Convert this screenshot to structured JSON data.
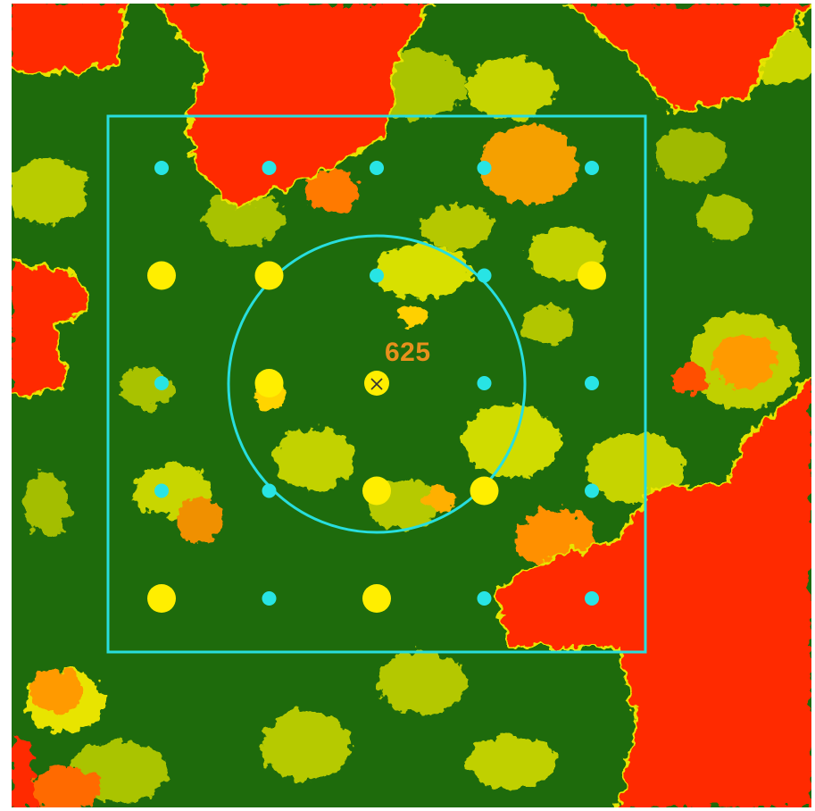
{
  "map": {
    "plot_id_label": "625",
    "center_marker_icon": "x-mark-icon",
    "colors": {
      "background": "#1e6b0c",
      "low_vegetation": "#c9d400",
      "mid_vegetation": "#f0e800",
      "high_stress": "#ff2a00",
      "transition": "#ff9000",
      "plot_outline": "#28dede",
      "sample_point_large": "#ffee00",
      "sample_point_small": "#28e4e4",
      "label": "#e8901c"
    },
    "grid_points": [
      {
        "row": 1,
        "col": 1,
        "type": "small"
      },
      {
        "row": 1,
        "col": 2,
        "type": "small"
      },
      {
        "row": 1,
        "col": 3,
        "type": "small"
      },
      {
        "row": 1,
        "col": 4,
        "type": "small"
      },
      {
        "row": 1,
        "col": 5,
        "type": "small"
      },
      {
        "row": 2,
        "col": 1,
        "type": "large"
      },
      {
        "row": 2,
        "col": 2,
        "type": "large"
      },
      {
        "row": 2,
        "col": 3,
        "type": "small"
      },
      {
        "row": 2,
        "col": 4,
        "type": "small"
      },
      {
        "row": 2,
        "col": 5,
        "type": "large"
      },
      {
        "row": 3,
        "col": 1,
        "type": "small"
      },
      {
        "row": 3,
        "col": 2,
        "type": "large"
      },
      {
        "row": 3,
        "col": 3,
        "type": "center"
      },
      {
        "row": 3,
        "col": 4,
        "type": "small"
      },
      {
        "row": 3,
        "col": 5,
        "type": "small"
      },
      {
        "row": 4,
        "col": 1,
        "type": "small"
      },
      {
        "row": 4,
        "col": 2,
        "type": "small"
      },
      {
        "row": 4,
        "col": 3,
        "type": "large"
      },
      {
        "row": 4,
        "col": 4,
        "type": "large"
      },
      {
        "row": 4,
        "col": 5,
        "type": "small"
      },
      {
        "row": 5,
        "col": 1,
        "type": "large"
      },
      {
        "row": 5,
        "col": 2,
        "type": "small"
      },
      {
        "row": 5,
        "col": 3,
        "type": "large"
      },
      {
        "row": 5,
        "col": 4,
        "type": "small"
      },
      {
        "row": 5,
        "col": 5,
        "type": "small"
      }
    ]
  }
}
